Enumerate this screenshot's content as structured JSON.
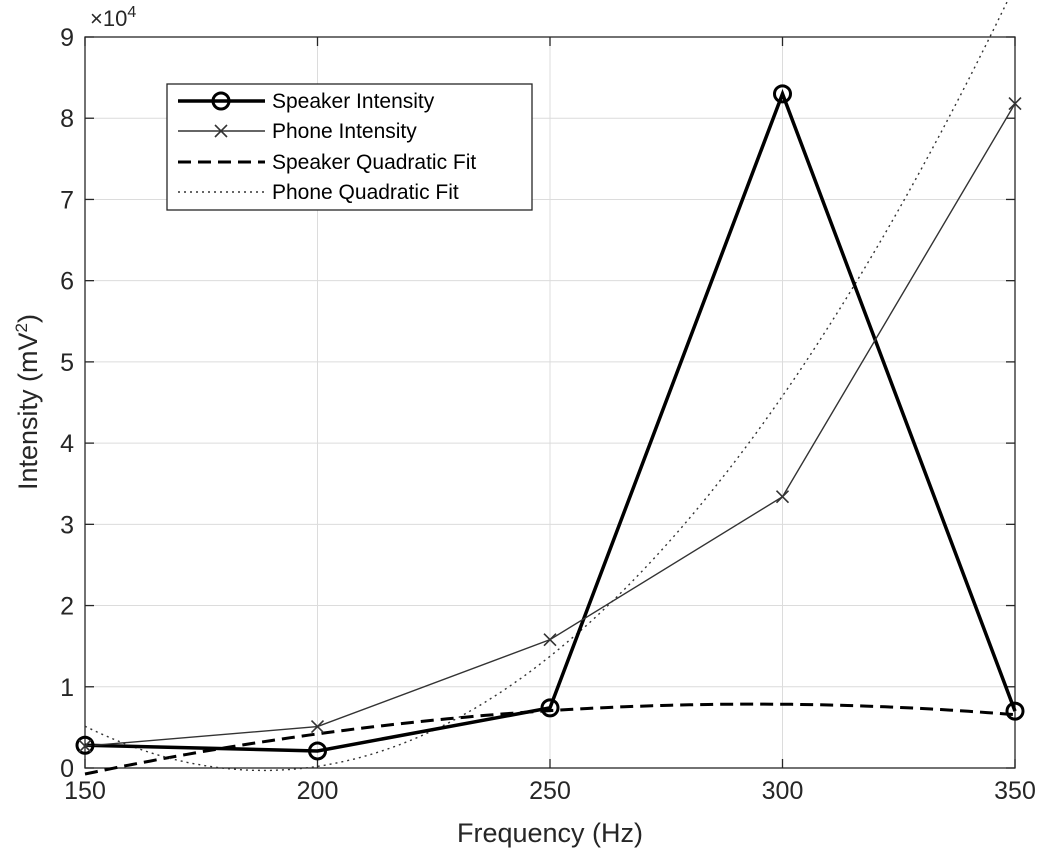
{
  "chart_data": {
    "type": "line",
    "xlabel": "Frequency (Hz)",
    "ylabel_main": "Intensity  (mV",
    "ylabel_sup": "2",
    "ylabel_close": ")",
    "y_multiplier_base": "×10",
    "y_multiplier_exp": "4",
    "xlim": [
      150,
      350
    ],
    "ylim": [
      0,
      90000
    ],
    "xticks": [
      150,
      200,
      250,
      300,
      350
    ],
    "yticks": [
      0,
      10000,
      20000,
      30000,
      40000,
      50000,
      60000,
      70000,
      80000,
      90000
    ],
    "xtick_labels": [
      "150",
      "200",
      "250",
      "300",
      "350"
    ],
    "ytick_labels": [
      "0",
      "1",
      "2",
      "3",
      "4",
      "5",
      "6",
      "7",
      "8",
      "9"
    ],
    "grid": true,
    "legend_position": "top-left",
    "x": [
      150,
      200,
      250,
      300,
      350
    ],
    "series": [
      {
        "name": "Speaker Intensity",
        "values": [
          2800,
          2100,
          7400,
          83000,
          7000
        ],
        "color": "#000000",
        "style": "solid-bold",
        "marker": "circle"
      },
      {
        "name": "Phone Intensity",
        "values": [
          2700,
          5100,
          15800,
          33400,
          81800
        ],
        "color": "#333333",
        "style": "solid-thin",
        "marker": "x"
      },
      {
        "name": "Speaker Quadratic Fit",
        "coefficients": [
          -0.415,
          244,
          -28000
        ],
        "color": "#000000",
        "style": "dashed"
      },
      {
        "name": "Phone Quadratic Fit",
        "coefficients": [
          3.7,
          -1394,
          131000
        ],
        "color": "#333333",
        "style": "dotted"
      }
    ]
  }
}
